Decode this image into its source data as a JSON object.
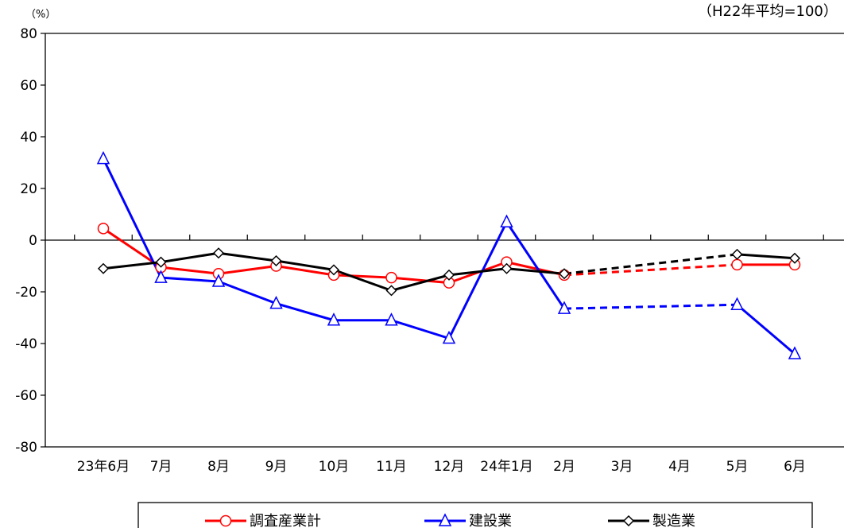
{
  "chart_data": {
    "type": "line",
    "title": "",
    "unit_label": "（%）",
    "base_note": "（H22年平均=100）",
    "xlabel": "",
    "ylabel": "",
    "ylim": [
      -80,
      80
    ],
    "y_ticks": [
      80,
      60,
      40,
      20,
      0,
      -20,
      -40,
      -60,
      -80
    ],
    "grid": false,
    "legend_position": "bottom",
    "categories": [
      "23年6月",
      "7月",
      "8月",
      "9月",
      "10月",
      "11月",
      "12月",
      "24年1月",
      "2月",
      "3月",
      "4月",
      "5月",
      "6月"
    ],
    "series": [
      {
        "name": "調査産業計",
        "color": "#ff0000",
        "marker": "circle",
        "values": [
          4.5,
          -10.5,
          -13,
          -10,
          -13.5,
          -14.5,
          -16.5,
          -8.5,
          -13.5,
          null,
          null,
          -9.5,
          -9.5
        ],
        "dashed_segments": [
          [
            8,
            11
          ]
        ]
      },
      {
        "name": "建設業",
        "color": "#0000ff",
        "marker": "triangle",
        "values": [
          31.5,
          -14.5,
          -16,
          -24.5,
          -31,
          -31,
          -38,
          7,
          -26.5,
          null,
          null,
          -25,
          -44
        ],
        "dashed_segments": [
          [
            8,
            11
          ]
        ]
      },
      {
        "name": "製造業",
        "color": "#000000",
        "marker": "diamond",
        "values": [
          -11,
          -8.5,
          -5,
          -8,
          -11.5,
          -19.5,
          -13.5,
          -11,
          -13,
          null,
          null,
          -5.5,
          -7
        ],
        "dashed_segments": [
          [
            8,
            11
          ]
        ]
      }
    ]
  }
}
